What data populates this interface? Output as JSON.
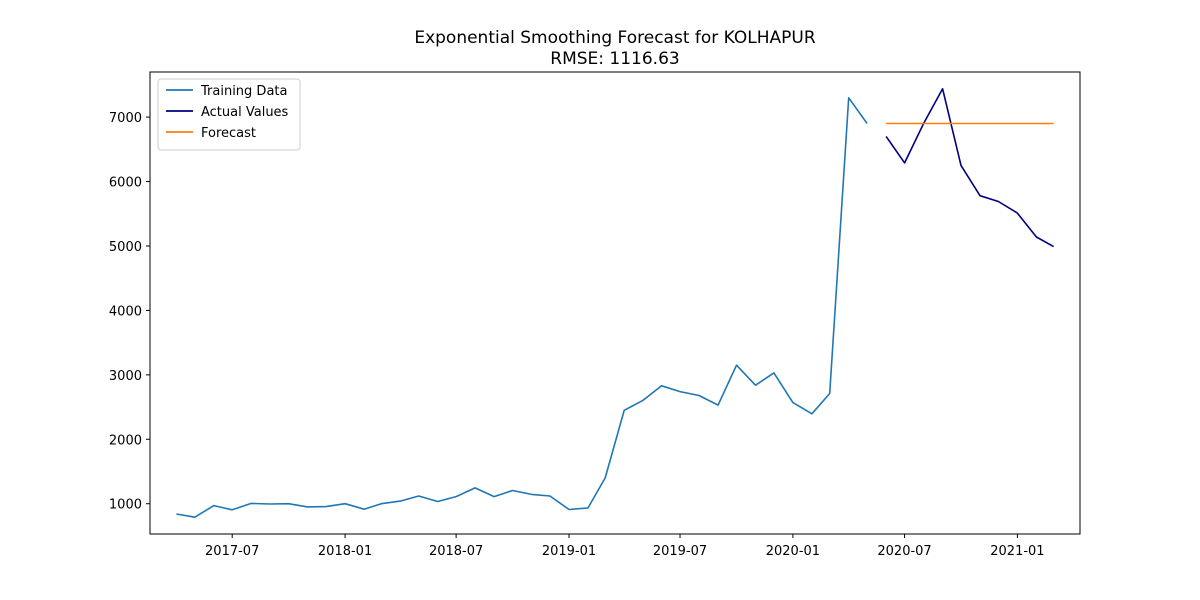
{
  "chart_data": {
    "type": "line",
    "title": "Exponential Smoothing Forecast for KOLHAPUR",
    "subtitle": "RMSE: 1116.63",
    "xlabel": "",
    "ylabel": "",
    "xlim": [
      "2017-02-17",
      "2021-04-13"
    ],
    "ylim": [
      530,
      7700
    ],
    "x_ticks": [
      "2017-07",
      "2018-01",
      "2018-07",
      "2019-01",
      "2019-07",
      "2020-01",
      "2020-07",
      "2021-01"
    ],
    "y_ticks": [
      1000,
      2000,
      3000,
      4000,
      5000,
      6000,
      7000
    ],
    "grid": false,
    "legend_position": "top-left",
    "series": [
      {
        "name": "Training Data",
        "color": "#1f77b4",
        "x": [
          "2017-04-01",
          "2017-05-01",
          "2017-06-01",
          "2017-07-01",
          "2017-08-01",
          "2017-09-01",
          "2017-10-01",
          "2017-11-01",
          "2017-12-01",
          "2018-01-01",
          "2018-02-01",
          "2018-03-01",
          "2018-04-01",
          "2018-05-01",
          "2018-06-01",
          "2018-07-01",
          "2018-08-01",
          "2018-09-01",
          "2018-10-01",
          "2018-11-01",
          "2018-12-01",
          "2019-01-01",
          "2019-02-01",
          "2019-03-01",
          "2019-04-01",
          "2019-05-01",
          "2019-06-01",
          "2019-07-01",
          "2019-08-01",
          "2019-09-01",
          "2019-10-01",
          "2019-11-01",
          "2019-12-01",
          "2020-01-01",
          "2020-02-01",
          "2020-03-01",
          "2020-04-01",
          "2020-05-01"
        ],
        "values": [
          840,
          790,
          970,
          905,
          1005,
          995,
          1000,
          950,
          955,
          1000,
          915,
          1000,
          1040,
          1120,
          1035,
          1110,
          1245,
          1110,
          1205,
          1145,
          1120,
          910,
          935,
          1400,
          2450,
          2600,
          2830,
          2740,
          2680,
          2530,
          3150,
          2840,
          3030,
          2570,
          2395,
          2710,
          7300,
          6900
        ]
      },
      {
        "name": "Actual Values",
        "color": "#000080",
        "x": [
          "2020-06-01",
          "2020-07-01",
          "2020-08-01",
          "2020-09-01",
          "2020-10-01",
          "2020-11-01",
          "2020-12-01",
          "2021-01-01",
          "2021-02-01",
          "2021-03-01"
        ],
        "values": [
          6700,
          6290,
          6900,
          7440,
          6250,
          5780,
          5690,
          5510,
          5140,
          4990
        ]
      },
      {
        "name": "Forecast",
        "color": "#ff7f0e",
        "x": [
          "2020-06-01",
          "2020-07-01",
          "2020-08-01",
          "2020-09-01",
          "2020-10-01",
          "2020-11-01",
          "2020-12-01",
          "2021-01-01",
          "2021-02-01",
          "2021-03-01"
        ],
        "values": [
          6900,
          6900,
          6900,
          6900,
          6900,
          6900,
          6900,
          6900,
          6900,
          6900
        ]
      }
    ]
  }
}
